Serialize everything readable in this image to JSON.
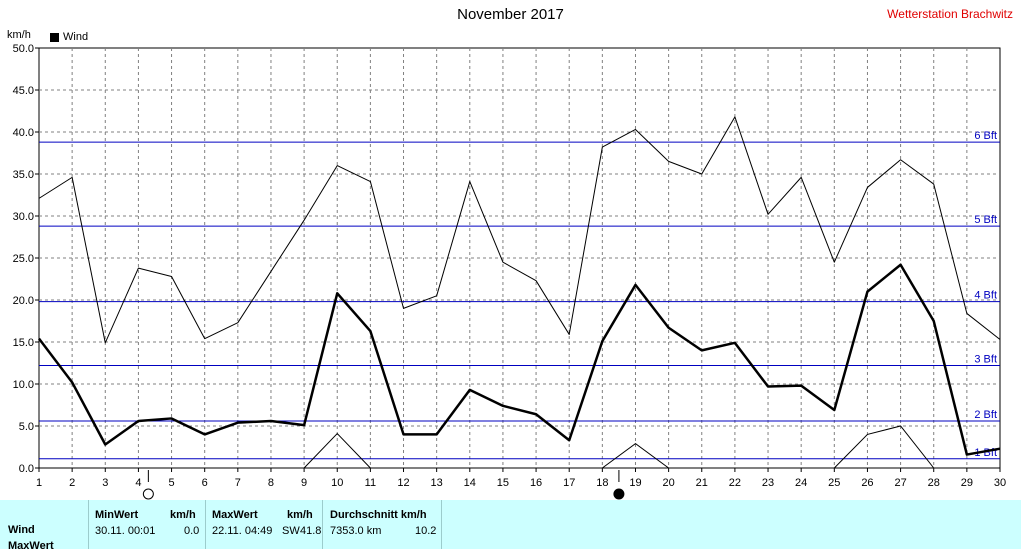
{
  "header": {
    "title": "November 2017",
    "station": "Wetterstation Brachwitz",
    "unit": "km/h",
    "legend_label": "Wind"
  },
  "chart_data": {
    "type": "line",
    "title": "November 2017",
    "ylabel": "km/h",
    "xlabel": "",
    "xlim": [
      1,
      30
    ],
    "ylim": [
      0,
      50
    ],
    "grid": true,
    "legend": "top-left",
    "x_ticks": [
      1,
      2,
      3,
      4,
      5,
      6,
      7,
      8,
      9,
      10,
      11,
      12,
      13,
      14,
      15,
      16,
      17,
      18,
      19,
      20,
      21,
      22,
      23,
      24,
      25,
      26,
      27,
      28,
      29,
      30
    ],
    "y_ticks": [
      "0.0",
      "5.0",
      "10.0",
      "15.0",
      "20.0",
      "25.0",
      "30.0",
      "35.0",
      "40.0",
      "45.0",
      "50.0"
    ],
    "series": [
      {
        "name": "Wind",
        "role": "mean",
        "x": [
          1,
          2,
          3,
          4,
          5,
          6,
          7,
          8,
          9,
          10,
          11,
          12,
          13,
          14,
          15,
          16,
          17,
          18,
          19,
          20,
          21,
          22,
          23,
          24,
          25,
          26,
          27,
          28,
          29,
          30
        ],
        "values": [
          15.4,
          10.2,
          2.8,
          5.6,
          5.9,
          4.0,
          5.4,
          5.6,
          5.1,
          20.8,
          16.3,
          4.0,
          4.0,
          9.3,
          7.4,
          6.4,
          3.3,
          15.1,
          21.8,
          16.7,
          14.0,
          14.9,
          9.7,
          9.8,
          6.9,
          21.0,
          24.2,
          17.5,
          1.6,
          2.3
        ]
      },
      {
        "role": "max",
        "x": [
          1,
          2,
          3,
          4,
          5,
          6,
          7,
          8,
          9,
          10,
          11,
          12,
          13,
          14,
          15,
          16,
          17,
          18,
          19,
          20,
          21,
          22,
          23,
          24,
          25,
          26,
          27,
          28,
          29,
          30
        ],
        "values": [
          32.1,
          34.6,
          14.9,
          23.8,
          22.8,
          15.4,
          17.3,
          23.4,
          29.5,
          36.0,
          34.1,
          19.0,
          20.5,
          34.1,
          24.5,
          22.3,
          15.9,
          38.2,
          40.3,
          36.5,
          35.0,
          41.8,
          30.2,
          34.6,
          24.5,
          33.4,
          36.7,
          33.8,
          18.4,
          15.3
        ]
      },
      {
        "role": "min",
        "x": [
          9,
          10,
          11,
          18,
          19,
          20,
          25,
          26,
          27,
          28
        ],
        "values": [
          0.0,
          4.1,
          0.0,
          0.0,
          2.9,
          0.0,
          0.0,
          4.0,
          5.0,
          0.0
        ]
      }
    ],
    "beaufort_lines": [
      {
        "label": "1 Bft",
        "value": 1.1
      },
      {
        "label": "2 Bft",
        "value": 5.6
      },
      {
        "label": "3 Bft",
        "value": 12.2
      },
      {
        "label": "4 Bft",
        "value": 19.8
      },
      {
        "label": "5 Bft",
        "value": 28.8
      },
      {
        "label": "6 Bft",
        "value": 38.8
      }
    ],
    "moon_phases": [
      {
        "day": 4.3,
        "phase": "full"
      },
      {
        "day": 18.5,
        "phase": "new"
      }
    ],
    "colors": {
      "beaufort": "#0000c0",
      "line": "#000000",
      "grid": "#808080",
      "stats_bg": "#ccffff"
    }
  },
  "stats": {
    "rows": [
      "Wind",
      "MaxWert"
    ],
    "min": {
      "header": "MinWert",
      "unit": "km/h",
      "time": "30.11.  00:01",
      "value": "0.0"
    },
    "max": {
      "header": "MaxWert",
      "unit": "km/h",
      "time": "22.11.  04:49",
      "dir": "SW",
      "value": "41.8"
    },
    "avg": {
      "header": "Durchschnitt km/h",
      "distance": "7353.0 km",
      "value": "10.2"
    }
  }
}
